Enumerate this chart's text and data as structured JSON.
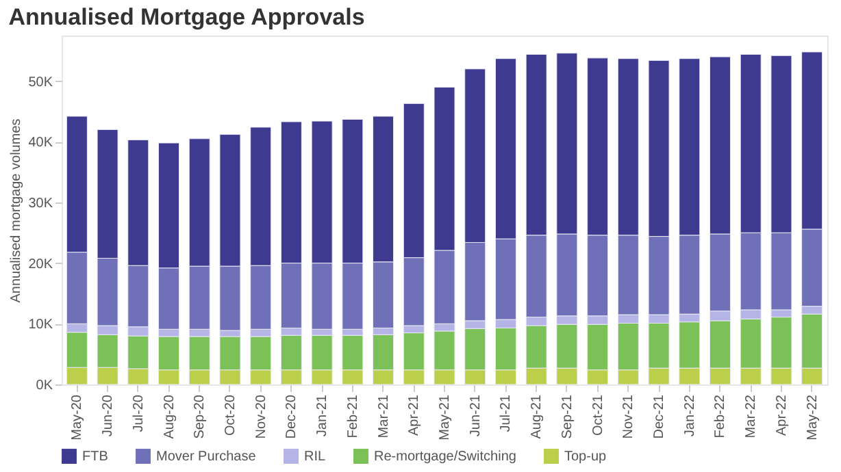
{
  "chart_data": {
    "type": "bar",
    "title": "Annualised Mortgage Approvals",
    "ylabel": "Annualised mortgage volumes",
    "categories": [
      "May-20",
      "Jun-20",
      "Jul-20",
      "Aug-20",
      "Sep-20",
      "Oct-20",
      "Nov-20",
      "Dec-20",
      "Jan-21",
      "Feb-21",
      "Mar-21",
      "Apr-21",
      "May-21",
      "Jun-21",
      "Jul-21",
      "Aug-21",
      "Sep-21",
      "Oct-21",
      "Nov-21",
      "Dec-21",
      "Jan-22",
      "Feb-22",
      "Mar-22",
      "Apr-22",
      "May-22"
    ],
    "stacked": true,
    "series": [
      {
        "name": "Top-up",
        "color": "#bccf4a",
        "values": [
          2800,
          2800,
          2600,
          2400,
          2400,
          2400,
          2400,
          2400,
          2400,
          2400,
          2400,
          2400,
          2400,
          2400,
          2400,
          2700,
          2700,
          2400,
          2400,
          2700,
          2700,
          2700,
          2700,
          2700,
          2700
        ]
      },
      {
        "name": "Re-mortgage/Switching",
        "color": "#7bc157",
        "values": [
          5800,
          5400,
          5400,
          5500,
          5500,
          5500,
          5500,
          5700,
          5700,
          5700,
          5800,
          6100,
          6400,
          6800,
          6900,
          7000,
          7200,
          7500,
          7700,
          7400,
          7600,
          7800,
          8100,
          8400,
          8900
        ]
      },
      {
        "name": "RIL",
        "color": "#b4b4e6",
        "values": [
          1400,
          1500,
          1500,
          1200,
          1200,
          1000,
          1200,
          1200,
          1000,
          1000,
          1100,
          1200,
          1200,
          1300,
          1400,
          1400,
          1400,
          1400,
          1400,
          1400,
          1300,
          1600,
          1500,
          1200,
          1300
        ]
      },
      {
        "name": "Mover Purchase",
        "color": "#7070b8",
        "values": [
          11800,
          11100,
          10100,
          10100,
          10400,
          10600,
          10500,
          10700,
          10900,
          10900,
          10900,
          11200,
          12100,
          12900,
          13300,
          13500,
          13500,
          13300,
          13100,
          12900,
          13000,
          12700,
          12700,
          12700,
          12700
        ]
      },
      {
        "name": "FTB",
        "color": "#3d3a8f",
        "values": [
          22400,
          21200,
          20700,
          20600,
          21000,
          21700,
          22800,
          23300,
          23400,
          23700,
          24000,
          25400,
          26900,
          28600,
          29700,
          29800,
          29800,
          29200,
          29100,
          29000,
          29100,
          29200,
          29400,
          29200,
          29200
        ]
      }
    ],
    "ylim": [
      0,
      57500
    ],
    "yticks": [
      {
        "value": 0,
        "label": "0K"
      },
      {
        "value": 10000,
        "label": "10K"
      },
      {
        "value": 20000,
        "label": "20K"
      },
      {
        "value": 30000,
        "label": "30K"
      },
      {
        "value": 40000,
        "label": "40K"
      },
      {
        "value": 50000,
        "label": "50K"
      }
    ],
    "grid": false,
    "legend": "bottom"
  }
}
